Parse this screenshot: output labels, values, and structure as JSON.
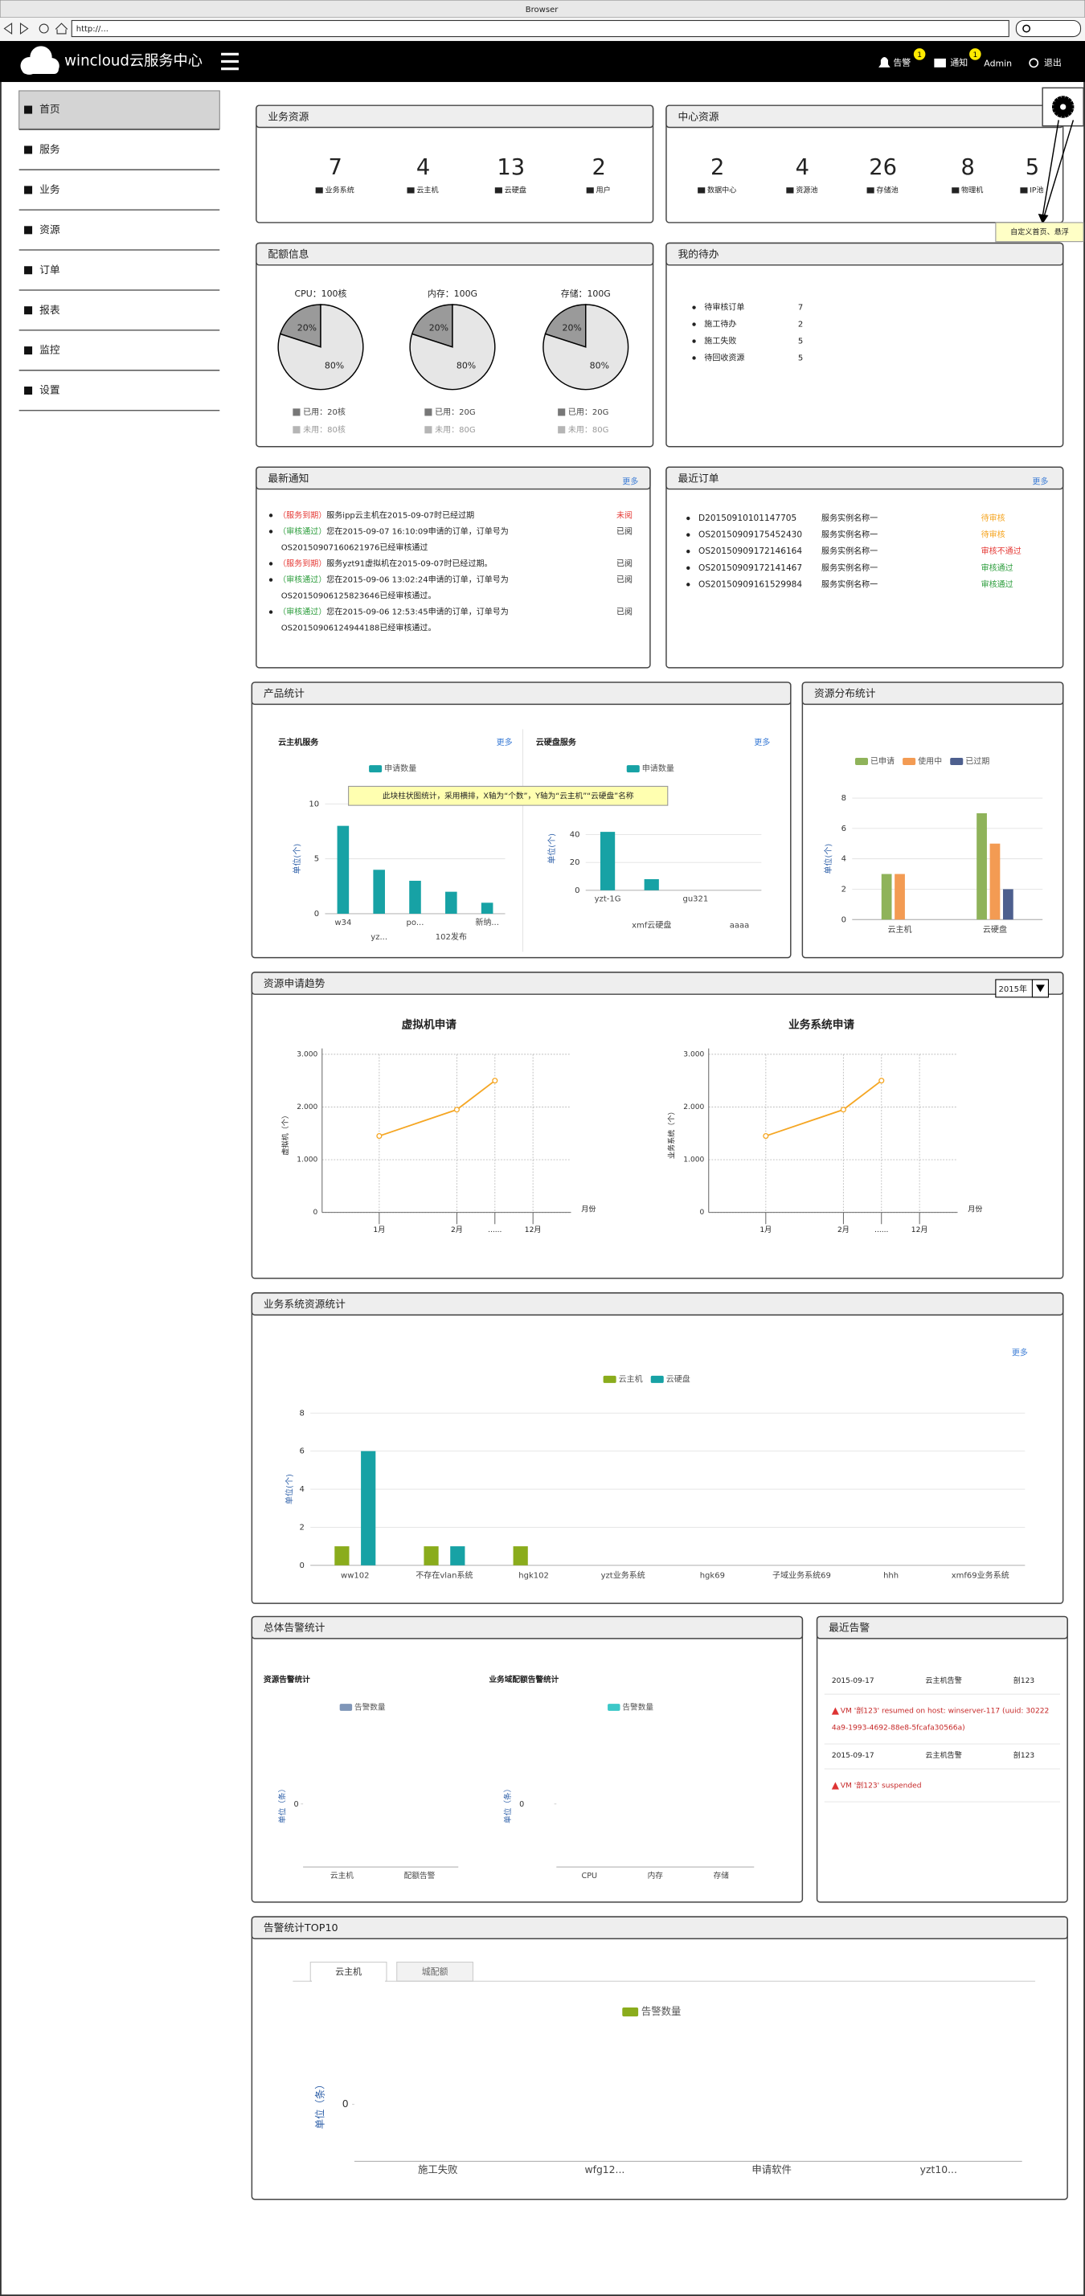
{
  "browser": {
    "title": "Browser",
    "url": "http://..."
  },
  "nav": {
    "brand": "wincloud云服务中心",
    "alerts": "告警",
    "alerts_badge": "1",
    "notices": "通知",
    "notices_badge": "1",
    "user": "Admin",
    "logout": "退出"
  },
  "sidebar": [
    "首页",
    "服务",
    "业务",
    "资源",
    "订单",
    "报表",
    "监控",
    "设置"
  ],
  "business_resources": {
    "title": "业务资源",
    "items": [
      {
        "count": 7,
        "label": "业务系统"
      },
      {
        "count": 4,
        "label": "云主机"
      },
      {
        "count": 13,
        "label": "云硬盘"
      },
      {
        "count": 2,
        "label": "用户"
      }
    ]
  },
  "center_resources": {
    "title": "中心资源",
    "items": [
      {
        "count": 2,
        "label": "数据中心"
      },
      {
        "count": 4,
        "label": "资源池"
      },
      {
        "count": 26,
        "label": "存储池"
      },
      {
        "count": 8,
        "label": "物理机"
      },
      {
        "count": 5,
        "label": "IP池"
      }
    ]
  },
  "customize_hint": "自定义首页、悬浮",
  "quota": {
    "title": "配额信息",
    "items": [
      {
        "type": "pie",
        "label": "CPU：100核",
        "values": [
          20,
          80
        ],
        "value_labels": [
          "20%",
          "80%"
        ],
        "colors": [
          "#9a9a9a",
          "#e6e6e6"
        ],
        "legend": [
          "已用：20核",
          "未用：80核"
        ],
        "legend_colors": [
          "#777777",
          "#b5b5b5"
        ]
      },
      {
        "type": "pie",
        "label": "内存：100G",
        "values": [
          20,
          80
        ],
        "value_labels": [
          "20%",
          "80%"
        ],
        "colors": [
          "#9a9a9a",
          "#e6e6e6"
        ],
        "legend": [
          "已用：20G",
          "未用：80G"
        ],
        "legend_colors": [
          "#777777",
          "#b5b5b5"
        ]
      },
      {
        "type": "pie",
        "label": "存储：100G",
        "values": [
          20,
          80
        ],
        "value_labels": [
          "20%",
          "80%"
        ],
        "colors": [
          "#9a9a9a",
          "#e6e6e6"
        ],
        "legend": [
          "已用：20G",
          "未用：80G"
        ],
        "legend_colors": [
          "#777777",
          "#b5b5b5"
        ]
      }
    ]
  },
  "todo": {
    "title": "我的待办",
    "items": [
      {
        "label": "待审核订单",
        "count": 7
      },
      {
        "label": "施工待办",
        "count": 2
      },
      {
        "label": "施工失败",
        "count": 5
      },
      {
        "label": "待回收资源",
        "count": 5
      }
    ]
  },
  "notices": {
    "title": "最新通知",
    "more": "更多",
    "items": [
      {
        "tag": "（服务到期）",
        "tag_color": "#e53935",
        "lines": [
          "服务ipp云主机在2015-09-07时已经过期"
        ],
        "status": "未阅",
        "status_color": "#e53935"
      },
      {
        "tag": "（审核通过）",
        "tag_color": "#2e9e3e",
        "lines": [
          "您在2015-09-07 16:10:09申请的订单，订单号为",
          "OS20150907160621976已经审核通过"
        ],
        "status": "已阅",
        "status_color": "#333333"
      },
      {
        "tag": "（服务到期）",
        "tag_color": "#e53935",
        "lines": [
          "服务yzt91虚拟机在2015-09-07时已经过期。"
        ],
        "status": "已阅",
        "status_color": "#333333"
      },
      {
        "tag": "（审核通过）",
        "tag_color": "#2e9e3e",
        "lines": [
          "您在2015-09-06 13:02:24申请的订单，订单号为",
          "OS20150906125823646已经审核通过。"
        ],
        "status": "已阅",
        "status_color": "#333333"
      },
      {
        "tag": "（审核通过）",
        "tag_color": "#2e9e3e",
        "lines": [
          "您在2015-09-06 12:53:45申请的订单，订单号为",
          "OS20150906124944188已经审核通过。"
        ],
        "status": "已阅",
        "status_color": "#333333"
      }
    ]
  },
  "orders": {
    "title": "最近订单",
    "more": "更多",
    "items": [
      {
        "id": "D20150910101147705",
        "name": "服务实例名称一",
        "status": "待审核",
        "status_color": "#f5a623"
      },
      {
        "id": "OS20150909175452430",
        "name": "服务实例名称一",
        "status": "待审核",
        "status_color": "#f5a623"
      },
      {
        "id": "OS20150909172146164",
        "name": "服务实例名称一",
        "status": "审核不通过",
        "status_color": "#e53935"
      },
      {
        "id": "OS20150909172141467",
        "name": "服务实例名称一",
        "status": "审核通过",
        "status_color": "#2e9e3e"
      },
      {
        "id": "OS20150909161529984",
        "name": "服务实例名称一",
        "status": "审核通过",
        "status_color": "#2e9e3e"
      }
    ]
  },
  "product_stats": {
    "title": "产品统计",
    "note": "此块柱状图统计，采用横排，X轴为“个数”，Y轴为“云主机”“云硬盘”名称",
    "charts": [
      {
        "type": "bar",
        "title": "云主机服务",
        "more": "更多",
        "y_label": "单位(个)",
        "categories": [
          "w34",
          "yz...",
          "po...",
          "102发布",
          "新纳..."
        ],
        "series": [
          {
            "name": "申请数量",
            "color": "#17a2a5",
            "values": [
              8,
              4,
              3,
              2,
              1
            ]
          }
        ],
        "ylim": [
          0,
          10
        ],
        "yticks": [
          0,
          5,
          10
        ],
        "grid": true
      },
      {
        "type": "bar",
        "title": "云硬盘服务",
        "more": "更多",
        "y_label": "单位(个)",
        "categories": [
          "yzt-1G",
          "xmf云硬盘",
          "gu321",
          "aaaa"
        ],
        "series": [
          {
            "name": "申请数量",
            "color": "#17a2a5",
            "values": [
              42,
              8,
              0,
              0
            ]
          }
        ],
        "ylim": [
          0,
          60
        ],
        "yticks": [
          0,
          20,
          40
        ],
        "grid": true
      }
    ]
  },
  "resource_distribution": {
    "title": "资源分布统计",
    "type": "bar",
    "y_label": "单位(个)",
    "categories": [
      "云主机",
      "云硬盘"
    ],
    "series": [
      {
        "name": "已申请",
        "color": "#8fb35a",
        "values": [
          3,
          7
        ]
      },
      {
        "name": "使用中",
        "color": "#f39b53",
        "values": [
          3,
          5
        ]
      },
      {
        "name": "已过期",
        "color": "#4d5f8e",
        "values": [
          0,
          2
        ]
      }
    ],
    "ylim": [
      0,
      8
    ],
    "yticks": [
      0,
      2,
      4,
      6,
      8
    ],
    "grid": true
  },
  "trend": {
    "title": "资源申请趋势",
    "year": "2015年",
    "charts": [
      {
        "type": "line",
        "title": "虚拟机申请",
        "y_label": "虚拟机（个）",
        "x_label": "月份",
        "categories": [
          "1月",
          "2月",
          "......",
          "12月"
        ],
        "series": [
          {
            "color": "#f5a623",
            "values": [
              1450,
              1950,
              2500,
              null
            ]
          }
        ],
        "ylim": [
          0,
          3000
        ],
        "yticks": [
          0,
          {
            "value": 1000,
            "label": "1.000"
          },
          {
            "value": 2000,
            "label": "2.000"
          },
          {
            "value": 3000,
            "label": "3.000"
          }
        ],
        "grid": true
      },
      {
        "type": "line",
        "title": "业务系统申请",
        "y_label": "业务系统（个）",
        "x_label": "月份",
        "categories": [
          "1月",
          "2月",
          "......",
          "12月"
        ],
        "series": [
          {
            "color": "#f5a623",
            "values": [
              1450,
              1950,
              2500,
              null
            ]
          }
        ],
        "ylim": [
          0,
          3000
        ],
        "yticks": [
          0,
          {
            "value": 1000,
            "label": "1.000"
          },
          {
            "value": 2000,
            "label": "2.000"
          },
          {
            "value": 3000,
            "label": "3.000"
          }
        ],
        "grid": true
      }
    ]
  },
  "system_stats": {
    "title": "业务系统资源统计",
    "more": "更多",
    "type": "bar",
    "y_label": "单位(个)",
    "categories": [
      "ww102",
      "不存在vlan系统",
      "hgk102",
      "yzt业务系统",
      "hgk69",
      "子域业务系统69",
      "hhh",
      "xmf69业务系统"
    ],
    "series": [
      {
        "name": "云主机",
        "color": "#8aac1c",
        "values": [
          1,
          1,
          1,
          0,
          0,
          0,
          0,
          0
        ]
      },
      {
        "name": "云硬盘",
        "color": "#17a2a5",
        "values": [
          6,
          1,
          0,
          0,
          0,
          0,
          0,
          0
        ]
      }
    ],
    "ylim": [
      0,
      8
    ],
    "yticks": [
      0,
      2,
      4,
      6,
      8
    ],
    "grid": true
  },
  "alarm_stats": {
    "title": "总体告警统计",
    "charts": [
      {
        "type": "bar",
        "title": "资源告警统计",
        "y_label": "单位（条）",
        "categories": [
          "云主机",
          "配额告警"
        ],
        "series": [
          {
            "name": "告警数量",
            "color": "#7f96b8",
            "values": [
              0,
              0
            ]
          }
        ],
        "ylim": [
          -1,
          1
        ],
        "yticks": [
          0
        ],
        "grid": false
      },
      {
        "type": "bar",
        "title": "业务域配额告警统计",
        "y_label": "单位（条）",
        "categories": [
          "CPU",
          "内存",
          "存储"
        ],
        "series": [
          {
            "name": "告警数量",
            "color": "#3cc8c8",
            "values": [
              0,
              0,
              0
            ]
          }
        ],
        "ylim": [
          -1,
          1
        ],
        "yticks": [
          0
        ],
        "grid": false
      }
    ]
  },
  "recent_alarms": {
    "title": "最近告警",
    "items": [
      {
        "date": "2015-09-17",
        "type": "云主机告警",
        "target": "剖123",
        "message": [
          "VM '剖123' resumed on host: winserver-117 (uuid: 30222",
          "4a9-1993-4692-88e8-5fcafa30566a)"
        ]
      },
      {
        "date": "2015-09-17",
        "type": "云主机告警",
        "target": "剖123",
        "message": [
          "VM '剖123' suspended"
        ]
      }
    ]
  },
  "top10": {
    "title": "告警统计TOP10",
    "tabs": [
      "云主机",
      "城配额"
    ],
    "type": "bar",
    "y_label": "单位（条）",
    "categories": [
      "施工失败",
      "wfg12...",
      "申请软件",
      "yzt10..."
    ],
    "series": [
      {
        "name": "告警数量",
        "color": "#8aac1c",
        "values": [
          0,
          0,
          0,
          0
        ]
      }
    ],
    "ylim": [
      -1,
      1
    ],
    "yticks": [
      0
    ],
    "grid": false
  }
}
